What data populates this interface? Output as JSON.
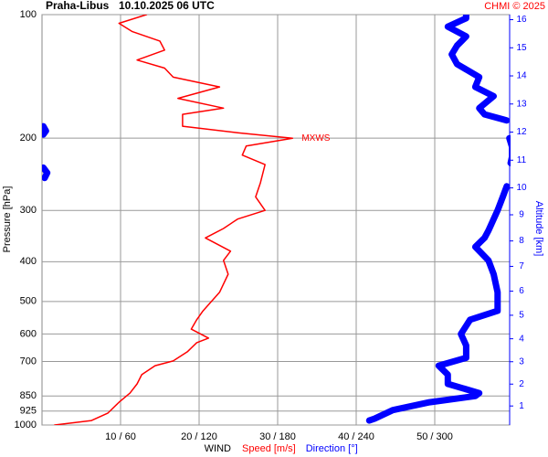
{
  "chart_data": {
    "type": "profile",
    "title": "Praha-Libus",
    "subtitle": "10.10.2025 06 UTC",
    "credit": "CHMI © 2025",
    "ylabel": "Pressure [hPa]",
    "y2label": "Altitude [km]",
    "xlabel": "WIND",
    "log_y": true,
    "grid": true,
    "ylim": [
      1000,
      100
    ],
    "yticks": [
      100,
      200,
      300,
      400,
      500,
      600,
      700,
      850,
      925,
      1000
    ],
    "xlim": [
      0,
      60
    ],
    "x2lim": [
      0,
      360
    ],
    "xticks": [
      {
        "value": 10,
        "label": "10 / 60"
      },
      {
        "value": 20,
        "label": "20 / 120"
      },
      {
        "value": 30,
        "label": "30 / 180"
      },
      {
        "value": 40,
        "label": "40 / 240"
      },
      {
        "value": 50,
        "label": "50 / 300"
      }
    ],
    "y2_scale": "standard-atmosphere",
    "y2ticks": [
      1,
      2,
      3,
      4,
      5,
      6,
      7,
      8,
      9,
      10,
      11,
      12,
      13,
      14,
      15,
      16
    ],
    "y2color": "#0000ff",
    "series": [
      {
        "name": "Speed [m/s]",
        "color": "#ff0000",
        "pressure": [
          100,
          105,
          110,
          116,
          122,
          129,
          135,
          142,
          150,
          160,
          169,
          175,
          187,
          194,
          200,
          209,
          220,
          232,
          257,
          278,
          300,
          315,
          332,
          350,
          377,
          397,
          429,
          475,
          527,
          554,
          584,
          614,
          630,
          663,
          698,
          717,
          754,
          794,
          836,
          880,
          935,
          975,
          1000
        ],
        "values": [
          13.3,
          9.8,
          11.5,
          15,
          15.6,
          12.1,
          15.6,
          16.7,
          22.6,
          17.3,
          23.1,
          17.9,
          17.9,
          24.9,
          31.9,
          26,
          25.5,
          28.4,
          27.8,
          27.2,
          28.4,
          24.9,
          23.1,
          20.8,
          24,
          23.1,
          23.7,
          22.6,
          20.5,
          19.7,
          19,
          21.2,
          19.7,
          18.5,
          16.7,
          14.4,
          12.7,
          12.1,
          11.2,
          9.8,
          8.4,
          6.3,
          1.6
        ]
      },
      {
        "name": "Direction [°]",
        "color": "#0000ff",
        "axis": "x2",
        "pressure": [
          100,
          102,
          107,
          113,
          119,
          125,
          132,
          142,
          150,
          158,
          169,
          175,
          181,
          null,
          187,
          192,
          196,
          null,
          200,
          210,
          222,
          230,
          null,
          236,
          243,
          250,
          null,
          262,
          278,
          300,
          336,
          350,
          368,
          397,
          429,
          475,
          527,
          554,
          600,
          640,
          686,
          717,
          754,
          794,
          836,
          850,
          880,
          920,
          965,
          975
        ],
        "values": [
          324,
          324,
          310,
          324,
          317,
          313,
          317,
          334,
          331,
          345,
          334,
          338,
          355,
          null,
          1,
          3,
          1,
          null,
          357,
          359,
          359,
          358,
          null,
          1,
          4,
          2,
          null,
          355,
          352,
          348,
          341,
          338,
          331,
          341,
          345,
          348,
          348,
          327,
          320,
          324,
          324,
          303,
          310,
          310,
          334,
          331,
          296,
          268,
          254,
          250
        ]
      }
    ],
    "annotations": [
      {
        "text": "MXWS",
        "x": 31.9,
        "y": 200,
        "color": "#ff0000"
      }
    ]
  }
}
